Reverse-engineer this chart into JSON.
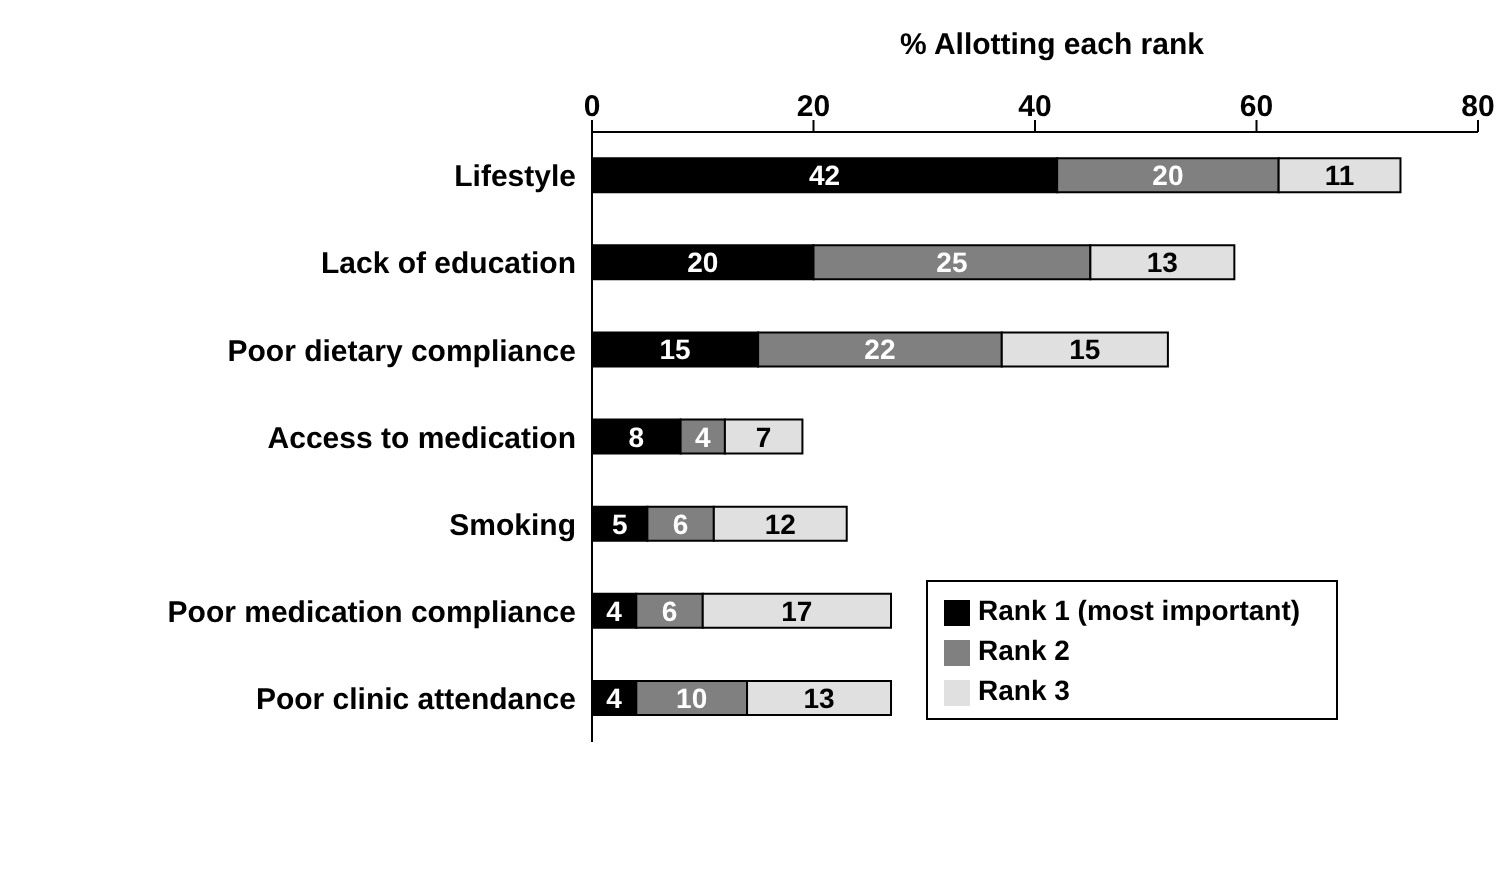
{
  "chart_data": {
    "type": "bar",
    "orientation": "horizontal",
    "stacked": true,
    "xlabel": "% Allotting each rank",
    "categories": [
      "Lifestyle",
      "Lack of education",
      "Poor dietary compliance",
      "Access to medication",
      "Smoking",
      "Poor medication compliance",
      "Poor clinic attendance"
    ],
    "series": [
      {
        "name": "Rank 1 (most important)",
        "color": "#000000",
        "values": [
          42,
          20,
          15,
          8,
          5,
          4,
          4
        ]
      },
      {
        "name": "Rank 2",
        "color": "#808080",
        "values": [
          20,
          25,
          22,
          4,
          6,
          6,
          10
        ]
      },
      {
        "name": "Rank 3",
        "color": "#e0e0e0",
        "values": [
          11,
          13,
          15,
          7,
          12,
          17,
          13
        ]
      }
    ],
    "xlim": [
      0,
      80
    ],
    "xticks": [
      0,
      20,
      40,
      60,
      80
    ],
    "data_labels": true,
    "grid": false,
    "legend": "right"
  }
}
